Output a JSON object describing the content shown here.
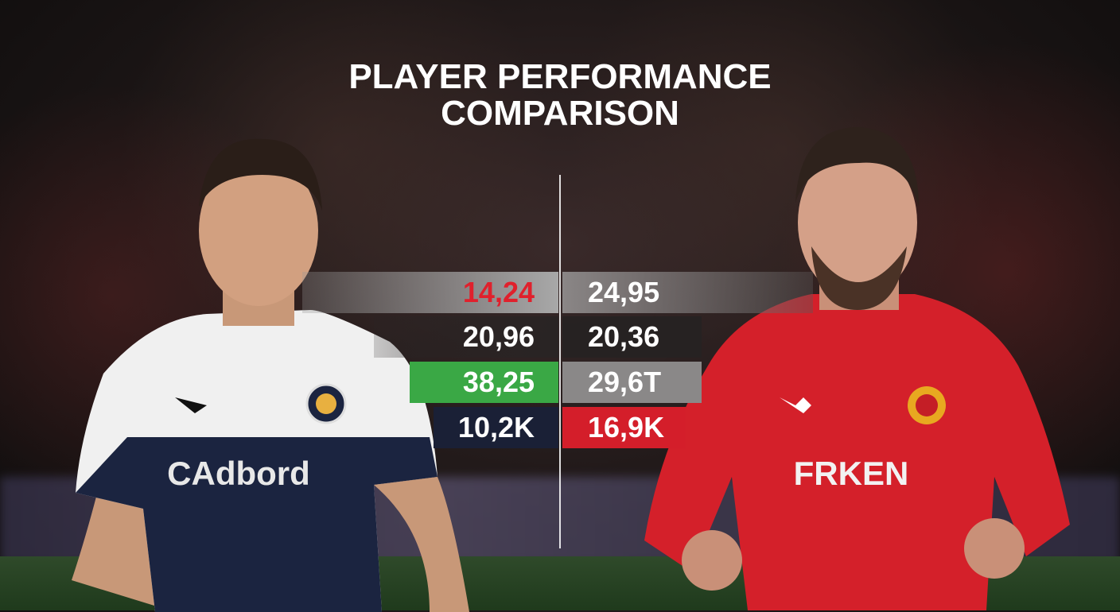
{
  "title_line1": "PLAYER PERFORMANCE",
  "title_line2": "COMPARISON",
  "left_player": {
    "sponsor": "CAdbord",
    "shirt_colors": [
      "#f2f2f2",
      "#1b2440"
    ],
    "stats": [
      {
        "value": "14,24",
        "bar_color": "#9a9a9a",
        "text_color": "#e0202c"
      },
      {
        "value": "20,96",
        "bar_color": "#2a2424",
        "text_color": "#ffffff"
      },
      {
        "value": "38,25",
        "bar_color": "#3aa845",
        "text_color": "#ffffff"
      },
      {
        "value": "10,2K",
        "bar_color": "#1a2036",
        "text_color": "#ffffff"
      }
    ]
  },
  "right_player": {
    "sponsor": "FRKEN",
    "shirt_color": "#d4202a",
    "stats": [
      {
        "value": "24,95",
        "bar_color": "#8a8686",
        "text_color": "#ffffff"
      },
      {
        "value": "20,36",
        "bar_color": "#262222",
        "text_color": "#ffffff"
      },
      {
        "value": "29,6T",
        "bar_color": "#8a8888",
        "text_color": "#ffffff"
      },
      {
        "value": "16,9K",
        "bar_color": "#d41e2a",
        "text_color": "#ffffff"
      }
    ]
  }
}
